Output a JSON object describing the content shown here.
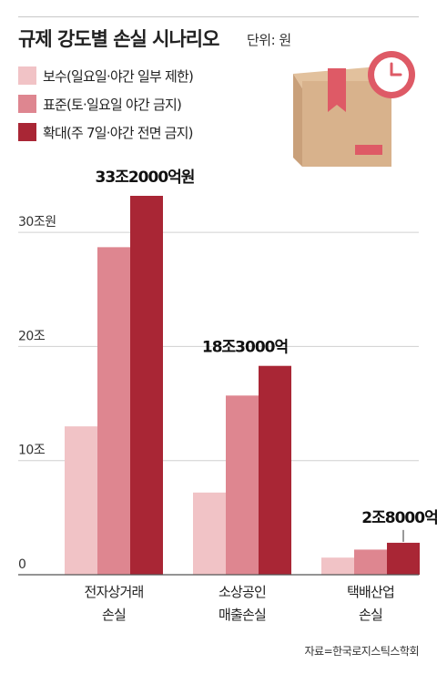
{
  "title": "규제 강도별 손실 시나리오",
  "unit_label": "단위: 원",
  "source": "자료=한국로지스틱스학회",
  "icon": "package-box-with-clock-icon",
  "colors": {
    "series_1": "#f1c3c6",
    "series_2": "#de8690",
    "series_3": "#a92635",
    "gridline": "#d0d0d0",
    "axis": "#555555"
  },
  "chart_data": {
    "type": "bar",
    "title": "규제 강도별 손실 시나리오",
    "unit": "단위: 원",
    "categories": [
      "전자상거래 손실",
      "소상공인 매출손실",
      "택배산업 손실"
    ],
    "category_lines": [
      [
        "전자상거래",
        "손실"
      ],
      [
        "소상공인",
        "매출손실"
      ],
      [
        "택배산업",
        "손실"
      ]
    ],
    "series": [
      {
        "name": "보수(일요일·야간 일부 제한)",
        "values": [
          13.0,
          7.2,
          1.5
        ]
      },
      {
        "name": "표준(토·일요일 야간 금지)",
        "values": [
          28.7,
          15.7,
          2.2
        ]
      },
      {
        "name": "확대(주 7일·야간 전면 금지)",
        "values": [
          33.2,
          18.3,
          2.8
        ]
      }
    ],
    "y_ticks": [
      {
        "value": 0,
        "label": "0"
      },
      {
        "value": 10,
        "label": "10조"
      },
      {
        "value": 20,
        "label": "20조"
      },
      {
        "value": 30,
        "label": "30조원"
      }
    ],
    "ylim": [
      0,
      33.5
    ],
    "grid": true,
    "legend_position": "top-left",
    "data_labels": [
      {
        "category": 0,
        "series": 2,
        "text": "33조2000억원"
      },
      {
        "category": 1,
        "series": 2,
        "text": "18조3000억"
      },
      {
        "category": 2,
        "series": 2,
        "text": "2조8000억"
      }
    ]
  }
}
